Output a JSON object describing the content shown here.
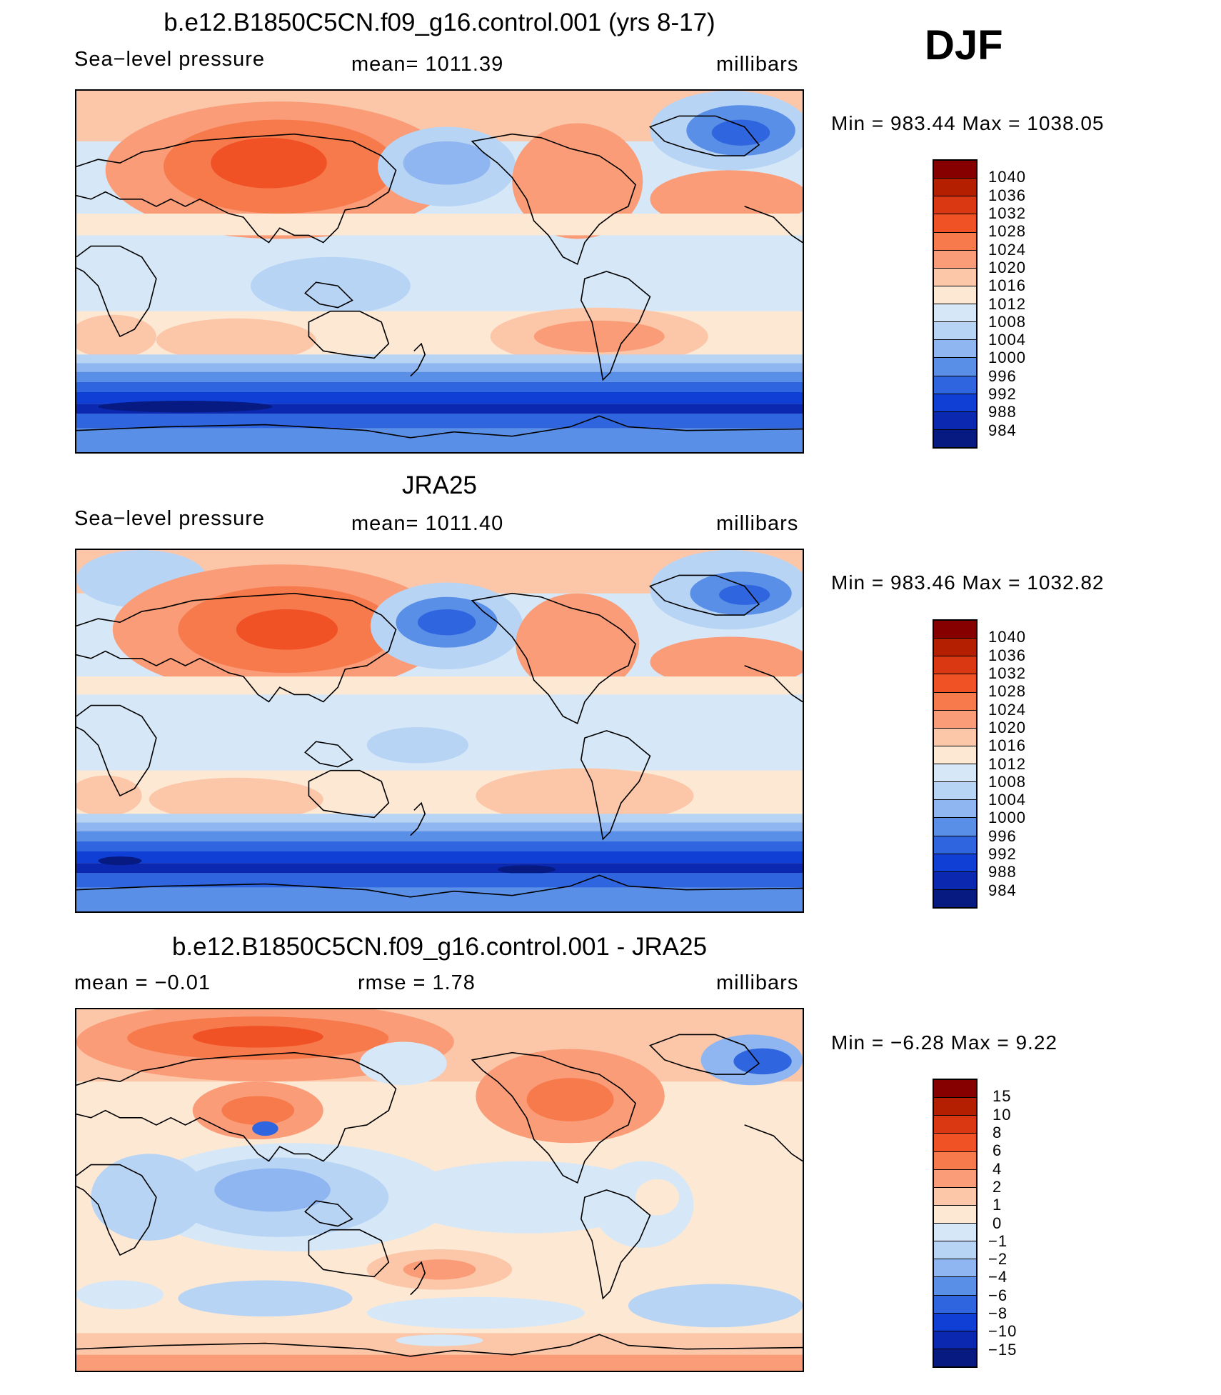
{
  "season": "DJF",
  "panels": [
    {
      "id": "model",
      "title": "b.e12.B1850C5CN.f09_g16.control.001 (yrs 8-17)",
      "left_label": "Sea−level pressure",
      "center_label": "mean=  1011.39",
      "right_label": "millibars",
      "minmax": "Min  =  983.44  Max  =  1038.05",
      "legend": [
        "1040",
        "1036",
        "1032",
        "1028",
        "1024",
        "1020",
        "1016",
        "1012",
        "1008",
        "1004",
        "1000",
        "996",
        "992",
        "988",
        "984"
      ]
    },
    {
      "id": "obs",
      "title": "JRA25",
      "left_label": "Sea−level pressure",
      "center_label": "mean=  1011.40",
      "right_label": "millibars",
      "minmax": "Min  =  983.46  Max  =  1032.82",
      "legend": [
        "1040",
        "1036",
        "1032",
        "1028",
        "1024",
        "1020",
        "1016",
        "1012",
        "1008",
        "1004",
        "1000",
        "996",
        "992",
        "988",
        "984"
      ]
    },
    {
      "id": "diff",
      "title": "b.e12.B1850C5CN.f09_g16.control.001 - JRA25",
      "left_label": "mean  =    −0.01",
      "center_label": "rmse  =     1.78",
      "right_label": "millibars",
      "minmax": "Min  =    −6.28  Max  =     9.22",
      "legend": [
        "15",
        "10",
        "8",
        "6",
        "4",
        "2",
        "1",
        "0",
        "−1",
        "−2",
        "−4",
        "−6",
        "−8",
        "−10",
        "−15"
      ]
    }
  ],
  "colors": {
    "scale": [
      "#870000",
      "#b31f00",
      "#d93812",
      "#f05226",
      "#f77a4d",
      "#fa9c78",
      "#fcc6a8",
      "#fde8d4",
      "#d6e8f7",
      "#b8d4f5",
      "#8fb6f0",
      "#5a8fe8",
      "#2f66e0",
      "#0f3fd4",
      "#0a28b0",
      "#061a82"
    ],
    "land_outline": "#000000"
  }
}
